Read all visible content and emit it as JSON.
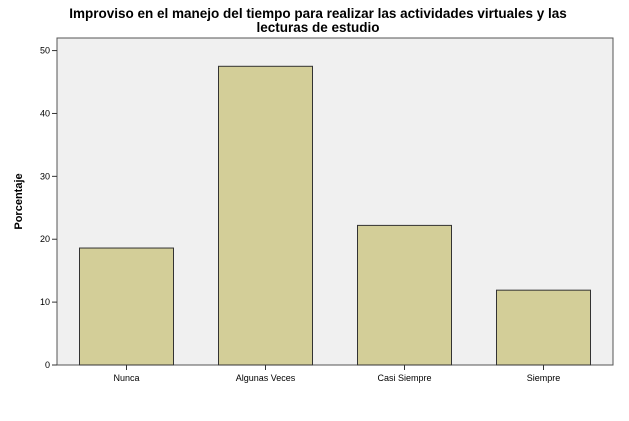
{
  "chart_data": {
    "type": "bar",
    "title_lines": [
      "Improviso en el manejo del tiempo para realizar las actividades virtuales y las",
      "lecturas de estudio"
    ],
    "xlabel": "",
    "ylabel": "Porcentaje",
    "categories": [
      "Nunca",
      "Algunas Veces",
      "Casi Siempre",
      "Siempre"
    ],
    "values": [
      18.6,
      47.5,
      22.2,
      11.9
    ],
    "ylim": [
      0,
      52
    ],
    "yticks": [
      0,
      10,
      20,
      30,
      40,
      50
    ],
    "grid": false,
    "legend": "none",
    "colors": {
      "plot_background": "#f0f0f0",
      "bar_fill": "#d3ce98",
      "bar_stroke": "#333333",
      "frame": "#555555"
    }
  }
}
